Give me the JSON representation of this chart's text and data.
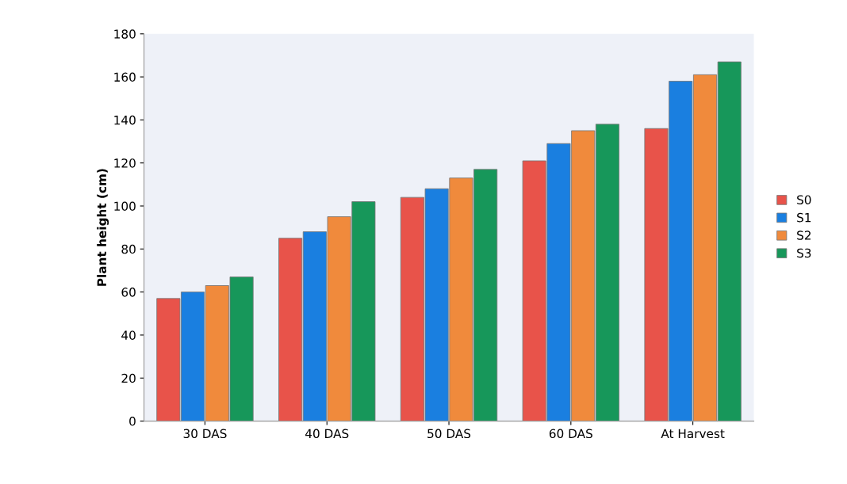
{
  "chart_data": {
    "type": "bar",
    "ylabel": "Plant height (cm)",
    "categories": [
      "30 DAS",
      "40 DAS",
      "50 DAS",
      "60 DAS",
      "At Harvest"
    ],
    "series": [
      {
        "name": "S0",
        "color": "#e8534a",
        "values": [
          57,
          85,
          104,
          121,
          136
        ]
      },
      {
        "name": "S1",
        "color": "#1a7fe0",
        "values": [
          60,
          88,
          108,
          129,
          158
        ]
      },
      {
        "name": "S2",
        "color": "#f08a3c",
        "values": [
          63,
          95,
          113,
          135,
          161
        ]
      },
      {
        "name": "S3",
        "color": "#17975a",
        "values": [
          67,
          102,
          117,
          138,
          167
        ]
      }
    ],
    "ylim": [
      0,
      180
    ],
    "yticks": [
      0,
      20,
      40,
      60,
      80,
      100,
      120,
      140,
      160,
      180
    ],
    "grid": false,
    "legend": "right"
  }
}
